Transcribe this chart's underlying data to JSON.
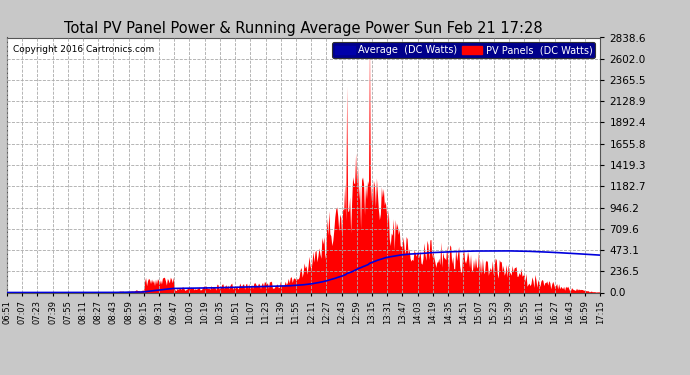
{
  "title": "Total PV Panel Power & Running Average Power Sun Feb 21 17:28",
  "copyright": "Copyright 2016 Cartronics.com",
  "legend_avg": "Average  (DC Watts)",
  "legend_pv": "PV Panels  (DC Watts)",
  "yticks": [
    0.0,
    236.5,
    473.1,
    709.6,
    946.2,
    1182.7,
    1419.3,
    1655.8,
    1892.4,
    2128.9,
    2365.5,
    2602.0,
    2838.6
  ],
  "ymax": 2838.6,
  "bg_color": "#c8c8c8",
  "plot_bg_color": "#ffffff",
  "grid_color": "#aaaaaa",
  "pv_color": "#ff0000",
  "avg_color": "#0000dd",
  "title_color": "#000000",
  "xtick_labels": [
    "06:51",
    "07:07",
    "07:23",
    "07:39",
    "07:55",
    "08:11",
    "08:27",
    "08:43",
    "08:59",
    "09:15",
    "09:31",
    "09:47",
    "10:03",
    "10:19",
    "10:35",
    "10:51",
    "11:07",
    "11:23",
    "11:39",
    "11:55",
    "12:11",
    "12:27",
    "12:43",
    "12:59",
    "13:15",
    "13:31",
    "13:47",
    "14:03",
    "14:19",
    "14:35",
    "14:51",
    "15:07",
    "15:23",
    "15:39",
    "15:55",
    "16:11",
    "16:27",
    "16:43",
    "16:59",
    "17:15"
  ]
}
